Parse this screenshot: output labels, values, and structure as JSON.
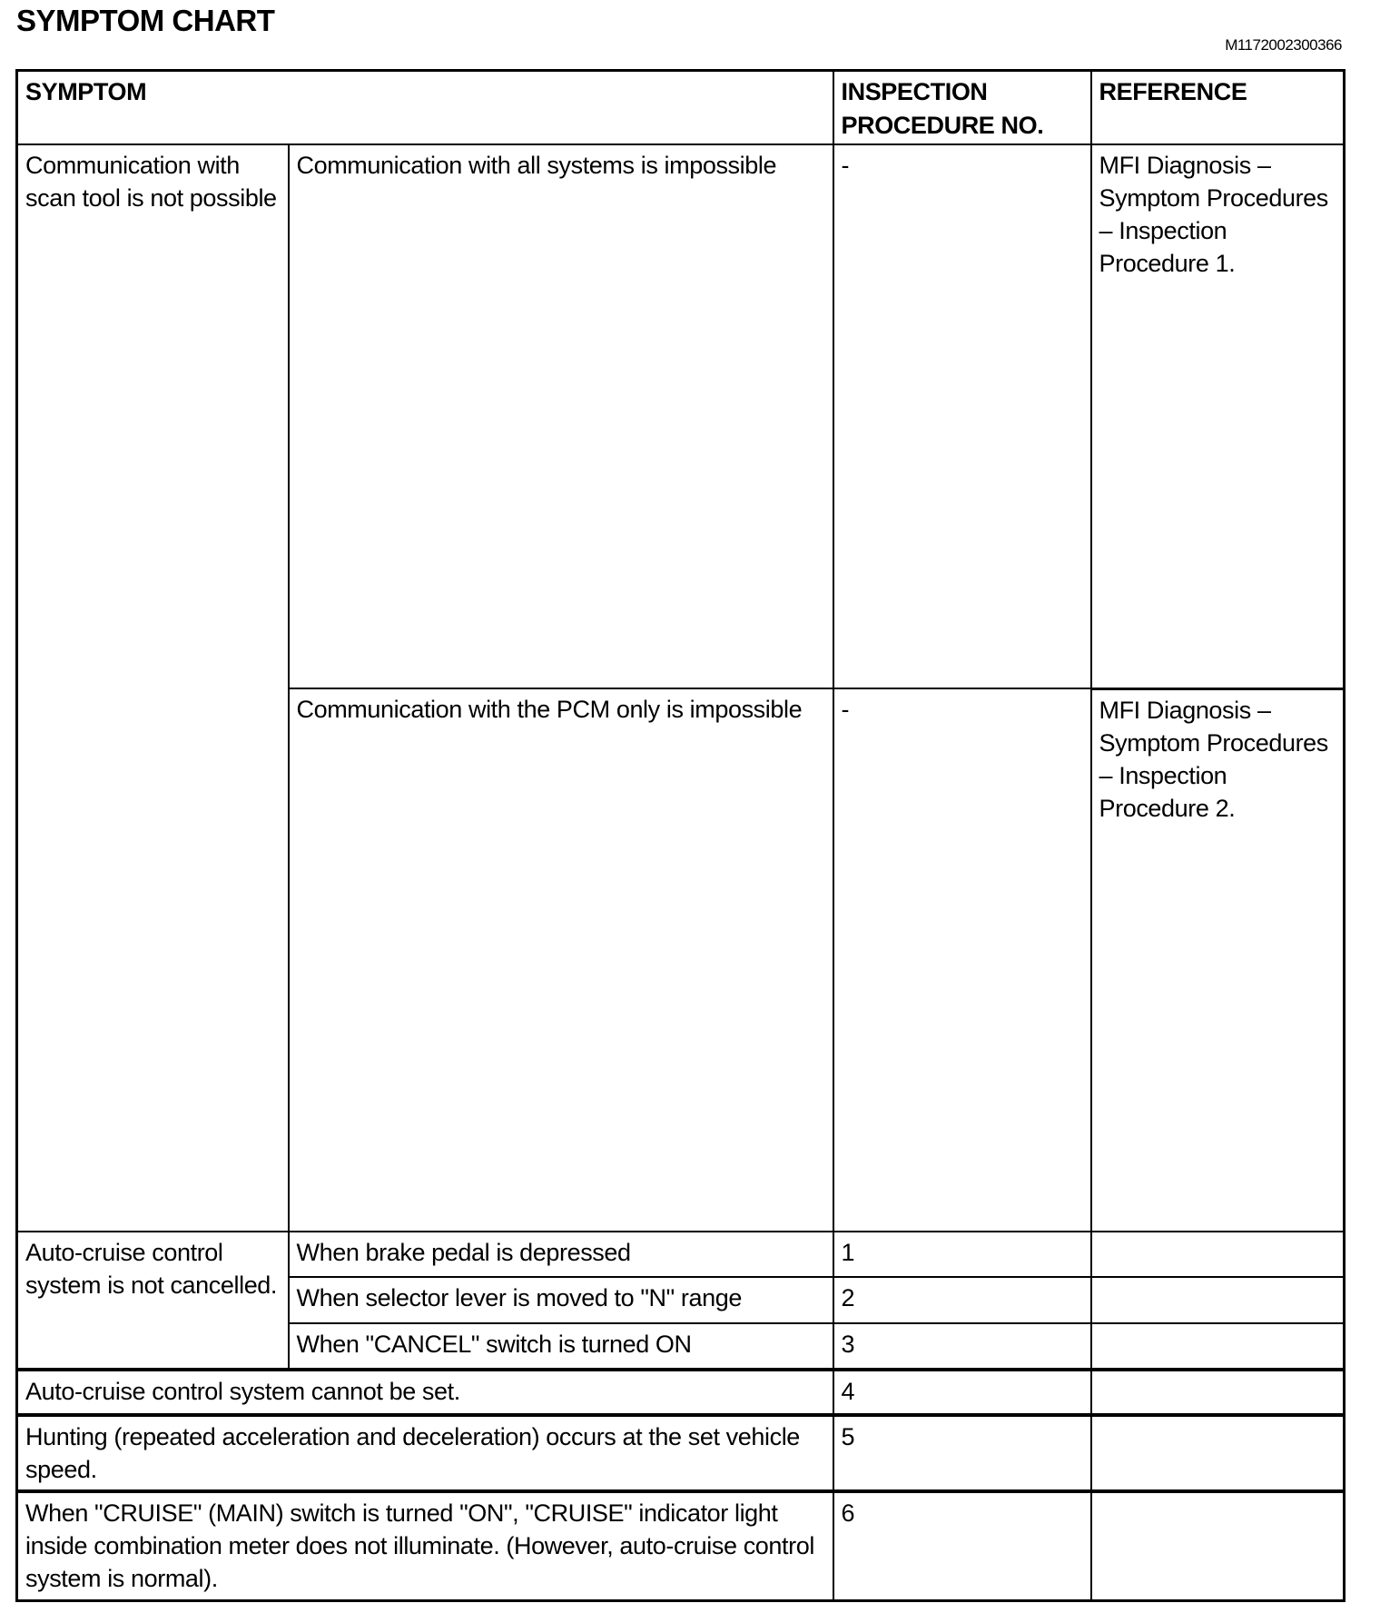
{
  "title": "SYMPTOM CHART",
  "doc_id": "M1172002300366",
  "headers": {
    "symptom": "SYMPTOM",
    "inspection": "INSPECTION PROCEDURE NO.",
    "reference": "REFERENCE"
  },
  "groups": [
    {
      "symptom": "Communication with scan tool is not possible",
      "rows": [
        {
          "condition": "Communication with all systems is impossible",
          "procedure": "-",
          "reference": "MFI Diagnosis – Symptom Procedures – Inspection Procedure 1."
        },
        {
          "condition": "Communication with the PCM only is impossible",
          "procedure": "-",
          "reference": "MFI Diagnosis – Symptom Procedures – Inspection Procedure 2."
        }
      ]
    },
    {
      "symptom": "Auto-cruise control system is not cancelled.",
      "rows": [
        {
          "condition": "When brake pedal is depressed",
          "procedure": "1",
          "reference": ""
        },
        {
          "condition": "When selector lever is moved to \"N\" range",
          "procedure": "2",
          "reference": ""
        },
        {
          "condition": "When \"CANCEL\" switch is turned ON",
          "procedure": "3",
          "reference": ""
        }
      ]
    }
  ],
  "single_rows": [
    {
      "symptom": "Auto-cruise control system cannot be set.",
      "procedure": "4",
      "reference": ""
    },
    {
      "symptom": "Hunting (repeated acceleration and deceleration) occurs at the set vehicle speed.",
      "procedure": "5",
      "reference": ""
    },
    {
      "symptom": "When \"CRUISE\" (MAIN) switch is turned \"ON\", \"CRUISE\" indicator light inside combination meter does not illuminate. (However, auto-cruise control system is normal).",
      "procedure": "6",
      "reference": ""
    }
  ]
}
